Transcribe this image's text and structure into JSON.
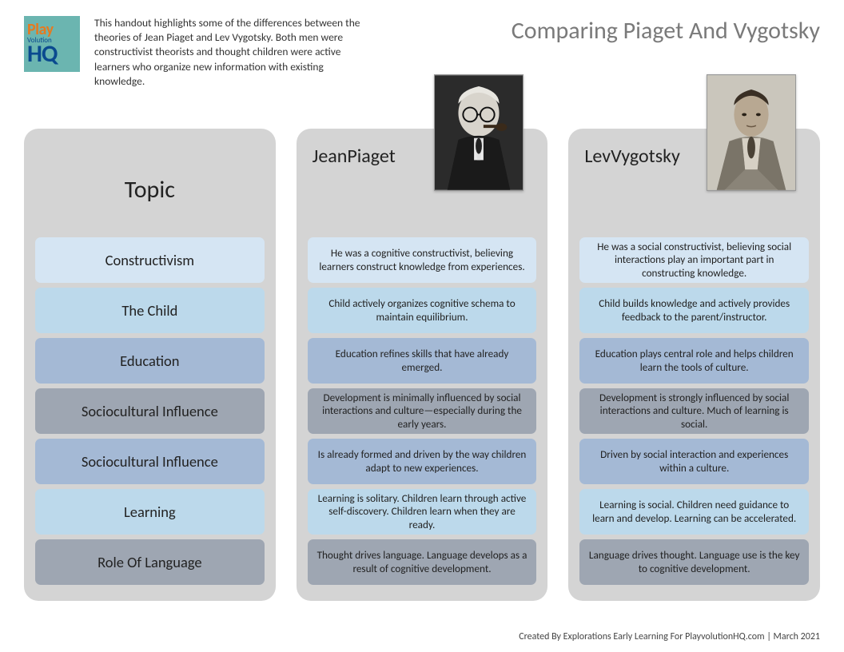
{
  "logo": {
    "line1": "Play",
    "line2": "Volution",
    "line3": "HQ"
  },
  "intro": "This handout highlights some of the differences between the theories of Jean Piaget and Lev Vygotsky. Both men were constructivist theorists and thought children were active learners who organize new information with existing knowledge.",
  "title": "Comparing Piaget And Vygotsky",
  "columns": {
    "topic": {
      "heading": "Topic"
    },
    "piaget": {
      "heading": "Jean\nPiaget"
    },
    "vygotsky": {
      "heading": "Lev\nVygotsky"
    }
  },
  "row_colors": [
    "#d5e5f3",
    "#bcd9eb",
    "#a4b9d5",
    "#9ea6b2",
    "#a4b9d5",
    "#bcd9eb",
    "#9ea6b2"
  ],
  "rows": [
    {
      "topic": "Constructivism",
      "piaget": "He was a cognitive constructivist, believing learners construct knowledge from experiences.",
      "vygotsky": "He was a social constructivist, believing social interactions play an important part in constructing knowledge."
    },
    {
      "topic": "The Child",
      "piaget": "Child actively organizes cognitive schema to maintain equilibrium.",
      "vygotsky": "Child builds knowledge and actively provides feedback to the parent/instructor."
    },
    {
      "topic": "Education",
      "piaget": "Education refines skills that have already emerged.",
      "vygotsky": "Education plays central role and helps children learn the tools of culture."
    },
    {
      "topic": "Sociocultural Influence",
      "piaget": "Development is minimally influenced by social interactions and culture—especially during the early years.",
      "vygotsky": "Development is strongly influenced by social interactions and culture. Much of learning is social."
    },
    {
      "topic": "Sociocultural Influence",
      "piaget": "Is already formed and driven by the way children adapt to new experiences.",
      "vygotsky": "Driven by social interaction and experiences within a culture."
    },
    {
      "topic": "Learning",
      "piaget": "Learning is solitary. Children learn through active self-discovery. Children learn when they are ready.",
      "vygotsky": "Learning is social. Children need guidance to learn and develop. Learning can be accelerated."
    },
    {
      "topic": "Role Of Language",
      "piaget": "Thought drives language. Language develops as a result of cognitive development.",
      "vygotsky": "Language drives thought. Language use is the key to cognitive development."
    }
  ],
  "footer": "Created By Explorations Early Learning For PlayvolutionHQ.com | March 2021"
}
